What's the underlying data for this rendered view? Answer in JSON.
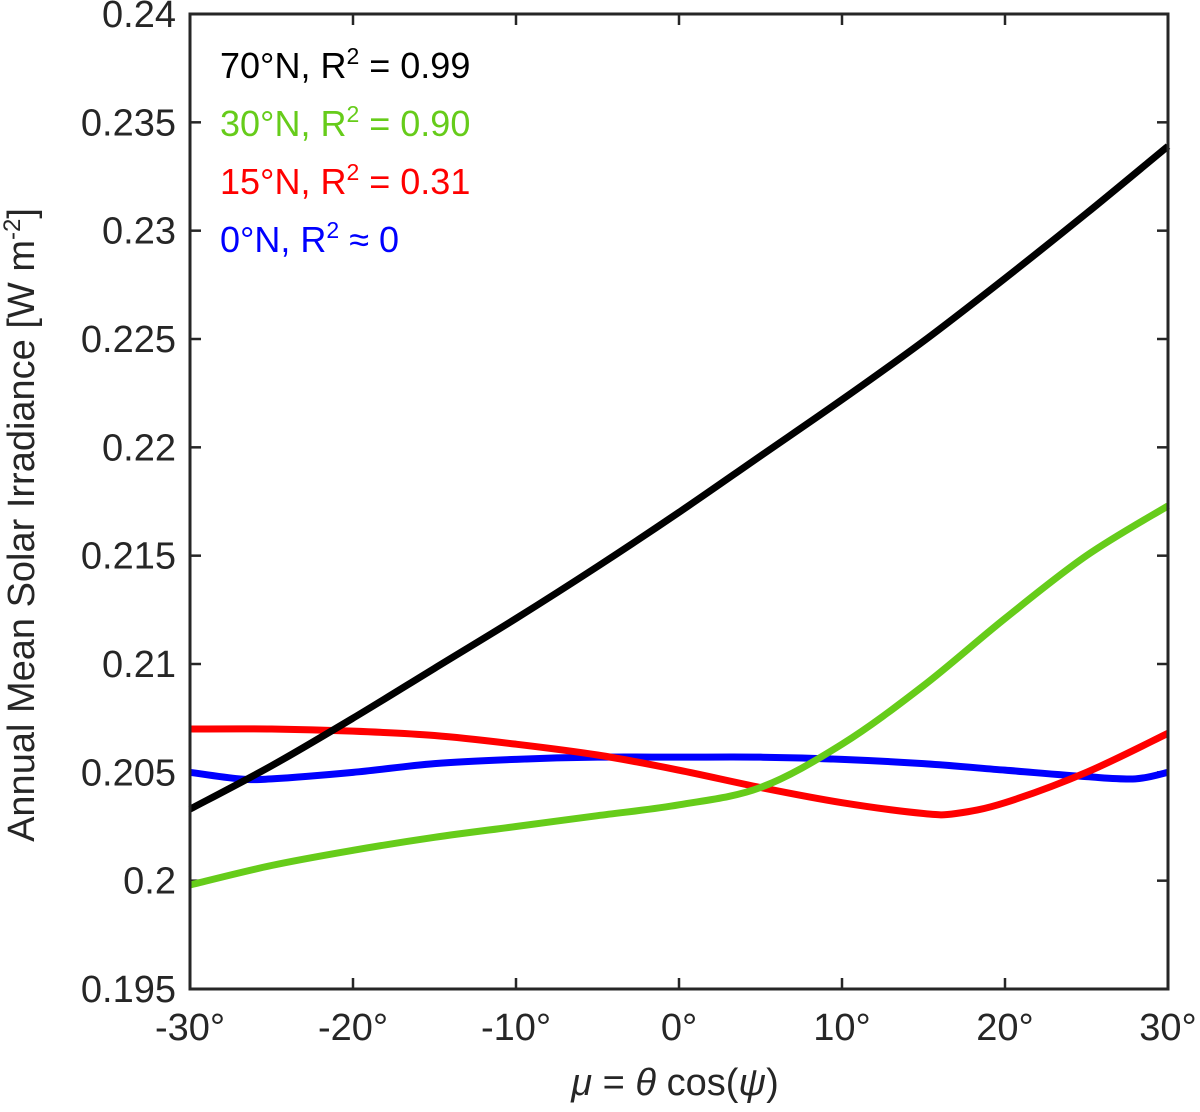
{
  "chart_data": {
    "type": "line",
    "title": "",
    "xlabel": {
      "mu": "μ",
      "eq": " = ",
      "theta": "θ",
      "cos": " cos(",
      "psi": "ψ",
      "close": ")"
    },
    "ylabel": {
      "main": "Annual Mean Solar Irradiance [W m",
      "sup": "-2",
      "close": "]"
    },
    "xlim": [
      -30,
      30
    ],
    "ylim": [
      0.195,
      0.24
    ],
    "x_ticks": [
      -30,
      -20,
      -10,
      0,
      10,
      20,
      30
    ],
    "x_tick_labels": [
      "-30°",
      "-20°",
      "-10°",
      "0°",
      "10°",
      "20°",
      "30°"
    ],
    "y_ticks": [
      0.195,
      0.2,
      0.205,
      0.21,
      0.215,
      0.22,
      0.225,
      0.23,
      0.235,
      0.24
    ],
    "y_tick_labels": [
      "0.195",
      "0.2",
      "0.205",
      "0.21",
      "0.215",
      "0.22",
      "0.225",
      "0.23",
      "0.235",
      "0.24"
    ],
    "legend_position": "top-left",
    "series": [
      {
        "name": "70°N",
        "label_prefix": "70°N, R",
        "label_sup": "2",
        "label_suffix": " = 0.99",
        "color": "#000000",
        "x": [
          -30,
          -25,
          -20,
          -15,
          -10,
          -5,
          0,
          5,
          10,
          15,
          20,
          25,
          30
        ],
        "values": [
          0.2033,
          0.2053,
          0.2075,
          0.2098,
          0.2121,
          0.2145,
          0.217,
          0.2196,
          0.2222,
          0.2249,
          0.2278,
          0.2308,
          0.2339
        ]
      },
      {
        "name": "30°N",
        "label_prefix": "30°N, R",
        "label_sup": "2",
        "label_suffix": " = 0.90",
        "color": "#66cc1a",
        "x": [
          -30,
          -25,
          -20,
          -15,
          -10,
          -5,
          0,
          5,
          10,
          15,
          20,
          25,
          30
        ],
        "values": [
          0.1998,
          0.2007,
          0.2014,
          0.202,
          0.2025,
          0.203,
          0.2035,
          0.2043,
          0.2063,
          0.209,
          0.2121,
          0.215,
          0.2173
        ]
      },
      {
        "name": "15°N",
        "label_prefix": "15°N, R",
        "label_sup": "2",
        "label_suffix": " = 0.31",
        "color": "#ff0000",
        "x": [
          -30,
          -25,
          -20,
          -15,
          -10,
          -5,
          0,
          5,
          10,
          15,
          17,
          20,
          25,
          30
        ],
        "values": [
          0.207,
          0.207,
          0.2069,
          0.2067,
          0.2063,
          0.2058,
          0.2051,
          0.2043,
          0.2036,
          0.2031,
          0.2031,
          0.2036,
          0.205,
          0.2068
        ]
      },
      {
        "name": "0°N",
        "label_prefix": "0°N, R",
        "label_sup": "2",
        "label_suffix": " ≈ 0",
        "color": "#0000ff",
        "x": [
          -30,
          -27,
          -25,
          -20,
          -15,
          -10,
          -5,
          0,
          5,
          10,
          15,
          20,
          25,
          28,
          30
        ],
        "values": [
          0.205,
          0.2047,
          0.2047,
          0.205,
          0.2054,
          0.2056,
          0.2057,
          0.2057,
          0.2057,
          0.2056,
          0.2054,
          0.2051,
          0.2048,
          0.2047,
          0.205
        ]
      }
    ]
  }
}
